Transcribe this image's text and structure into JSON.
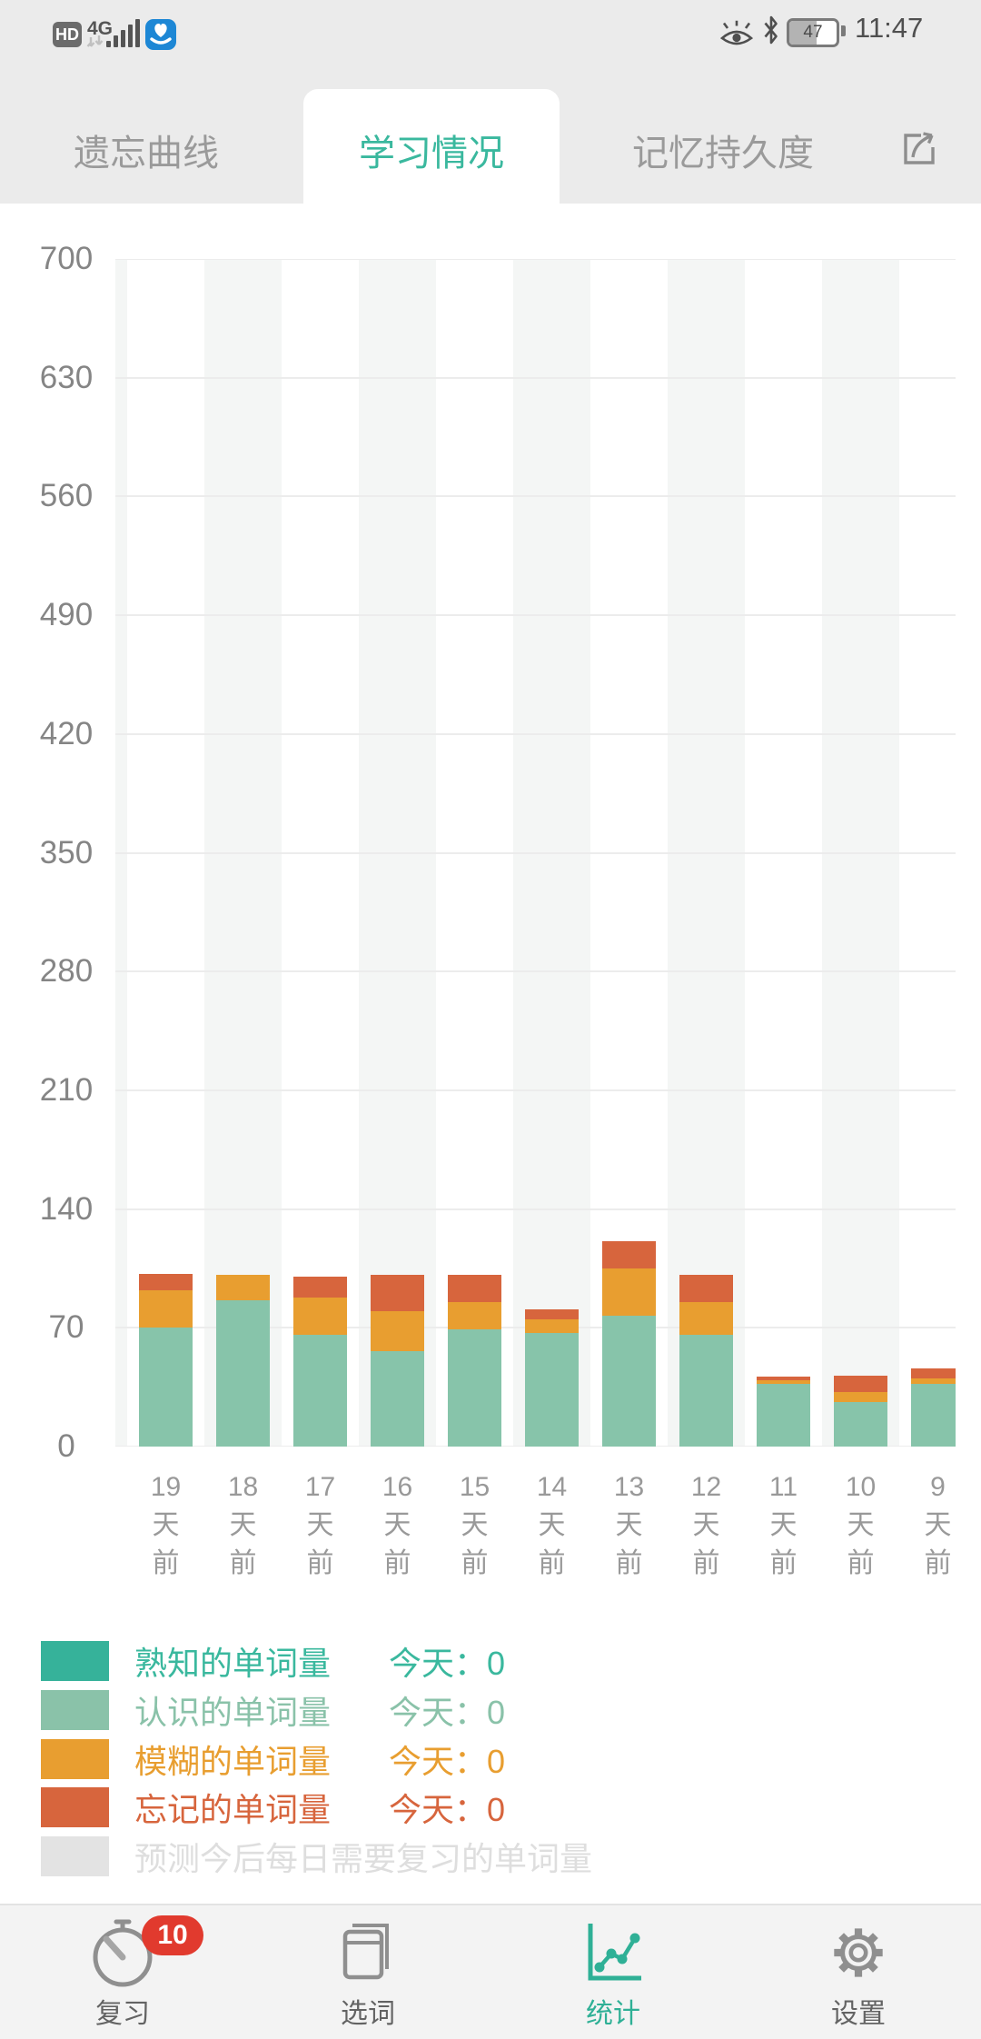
{
  "status_bar": {
    "hd": "HD",
    "network": "4G",
    "battery_level": "47",
    "time": "11:47",
    "left_icons": [
      "hd-badge",
      "4g-indicator",
      "signal-bars-icon",
      "app-icon"
    ],
    "right_icons": [
      "eye-comfort-icon",
      "bluetooth-icon",
      "battery-icon"
    ]
  },
  "tabs": {
    "items": [
      {
        "label": "遗忘曲线",
        "active": false
      },
      {
        "label": "学习情况",
        "active": true
      },
      {
        "label": "记忆持久度",
        "active": false
      }
    ],
    "share_icon": "share-icon",
    "active_color": "#3ab89e",
    "inactive_color": "#9a9a9a"
  },
  "chart_data": {
    "type": "bar",
    "stacked": true,
    "title": "学习情况 (每日单词量统计)",
    "xlabel": "",
    "ylabel": "",
    "ylim": [
      0,
      700
    ],
    "yticks": [
      0,
      70,
      140,
      210,
      280,
      350,
      420,
      490,
      560,
      630,
      700
    ],
    "grid": true,
    "plot_stripes": "alternating-columns",
    "legend_position": "bottom",
    "categories": [
      "19天前",
      "18天前",
      "17天前",
      "16天前",
      "15天前",
      "14天前",
      "13天前",
      "12天前",
      "11天前",
      "10天前",
      "9天前"
    ],
    "series": [
      {
        "name": "熟知的单词量",
        "color": "#36b29a",
        "values": [
          0,
          0,
          0,
          0,
          0,
          0,
          0,
          0,
          0,
          0,
          0
        ]
      },
      {
        "name": "认识的单词量",
        "color": "#87c4aa",
        "values": [
          70,
          86,
          66,
          56,
          69,
          67,
          77,
          66,
          37,
          26,
          37
        ]
      },
      {
        "name": "模糊的单词量",
        "color": "#e89e30",
        "values": [
          22,
          15,
          22,
          24,
          16,
          8,
          28,
          19,
          2,
          6,
          3
        ]
      },
      {
        "name": "忘记的单词量",
        "color": "#d7653d",
        "values": [
          10,
          0,
          12,
          21,
          16,
          6,
          16,
          16,
          2,
          10,
          6
        ]
      }
    ]
  },
  "legend": {
    "rows": [
      {
        "label": "熟知的单词量",
        "color": "#36b29a",
        "text_color": "#3ab89e",
        "today": "今天：0"
      },
      {
        "label": "认识的单词量",
        "color": "#8ac2a9",
        "text_color": "#8ac2a9",
        "today": "今天：0"
      },
      {
        "label": "模糊的单词量",
        "color": "#e89e30",
        "text_color": "#e89e30",
        "today": "今天：0"
      },
      {
        "label": "忘记的单词量",
        "color": "#d7653d",
        "text_color": "#d7653d",
        "today": "今天：0"
      },
      {
        "label": "预测今后每日需要复习的单词量",
        "color": "#e3e3e3",
        "text_color": "#dedede",
        "today": ""
      }
    ]
  },
  "nav": {
    "items": [
      {
        "label": "复习",
        "icon": "stopwatch-icon",
        "active": false,
        "badge": "10"
      },
      {
        "label": "选词",
        "icon": "book-icon",
        "active": false
      },
      {
        "label": "统计",
        "icon": "stats-chart-icon",
        "active": true
      },
      {
        "label": "设置",
        "icon": "gear-icon",
        "active": false
      }
    ],
    "badge_color": "#e13a2e",
    "active_color": "#2fb096"
  }
}
